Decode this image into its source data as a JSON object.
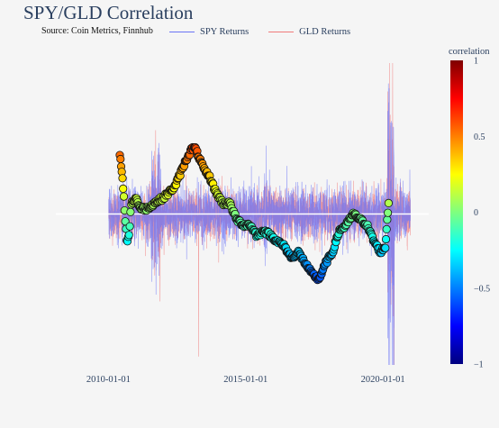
{
  "chart_data": {
    "type": "line",
    "title": "SPY/GLD Correlation",
    "subtitle": "Source: Coin Metrics, Finnhub",
    "x_axis": {
      "type": "date",
      "range": [
        "2008-02-01",
        "2021-09-01"
      ],
      "tick_labels": [
        "2010-01-01",
        "2015-01-01",
        "2020-01-01"
      ]
    },
    "y_axis": {
      "range": [
        -0.09,
        0.09
      ],
      "visible": false,
      "zero_line": true
    },
    "grid": false,
    "legend": {
      "placement": "top",
      "orientation": "horizontal"
    },
    "series": [
      {
        "name": "SPY Returns",
        "color": "#6b74f5",
        "kind": "daily returns (line)"
      },
      {
        "name": "GLD Returns",
        "color": "#f07a7a",
        "kind": "daily returns (line)"
      }
    ],
    "correlation_markers": {
      "description": "Rolling SPY/GLD correlation plotted as colour-scaled markers",
      "points": [
        [
          "2010-06-01",
          0.55
        ],
        [
          "2010-07-15",
          0.25
        ],
        [
          "2010-09-01",
          -0.25
        ],
        [
          "2010-10-01",
          -0.2
        ],
        [
          "2010-11-01",
          0.1
        ],
        [
          "2011-01-01",
          0.15
        ],
        [
          "2011-03-01",
          0.05
        ],
        [
          "2011-06-01",
          0.05
        ],
        [
          "2011-09-01",
          0.1
        ],
        [
          "2012-01-01",
          0.15
        ],
        [
          "2012-06-01",
          0.25
        ],
        [
          "2012-09-01",
          0.4
        ],
        [
          "2012-11-01",
          0.5
        ],
        [
          "2013-01-15",
          0.6
        ],
        [
          "2013-03-01",
          0.6
        ],
        [
          "2013-05-01",
          0.5
        ],
        [
          "2013-07-01",
          0.4
        ],
        [
          "2013-09-01",
          0.35
        ],
        [
          "2013-12-01",
          0.2
        ],
        [
          "2014-03-01",
          0.1
        ],
        [
          "2014-06-01",
          0.1
        ],
        [
          "2014-09-01",
          -0.05
        ],
        [
          "2014-12-01",
          -0.1
        ],
        [
          "2015-03-01",
          -0.1
        ],
        [
          "2015-06-01",
          -0.2
        ],
        [
          "2015-09-01",
          -0.15
        ],
        [
          "2015-12-01",
          -0.2
        ],
        [
          "2016-03-01",
          -0.25
        ],
        [
          "2016-06-01",
          -0.3
        ],
        [
          "2016-09-01",
          -0.4
        ],
        [
          "2016-12-01",
          -0.35
        ],
        [
          "2017-03-01",
          -0.45
        ],
        [
          "2017-06-01",
          -0.55
        ],
        [
          "2017-09-01",
          -0.6
        ],
        [
          "2017-12-01",
          -0.45
        ],
        [
          "2018-03-01",
          -0.35
        ],
        [
          "2018-06-01",
          -0.15
        ],
        [
          "2018-09-01",
          -0.1
        ],
        [
          "2018-12-01",
          0.0
        ],
        [
          "2019-03-01",
          -0.05
        ],
        [
          "2019-06-01",
          -0.1
        ],
        [
          "2019-09-01",
          -0.25
        ],
        [
          "2019-12-01",
          -0.35
        ],
        [
          "2020-02-01",
          -0.3
        ],
        [
          "2020-03-15",
          0.1
        ]
      ]
    },
    "colorbar": {
      "title": "correlation",
      "range": [
        -1,
        1
      ],
      "ticks": [
        "1",
        "0.5",
        "0",
        "−0.5",
        "−1"
      ],
      "colorscale": [
        "#00007f",
        "#0000ff",
        "#007fff",
        "#00ffff",
        "#7fff7f",
        "#ffff00",
        "#ff7f00",
        "#ff0000",
        "#7f0000"
      ]
    }
  }
}
